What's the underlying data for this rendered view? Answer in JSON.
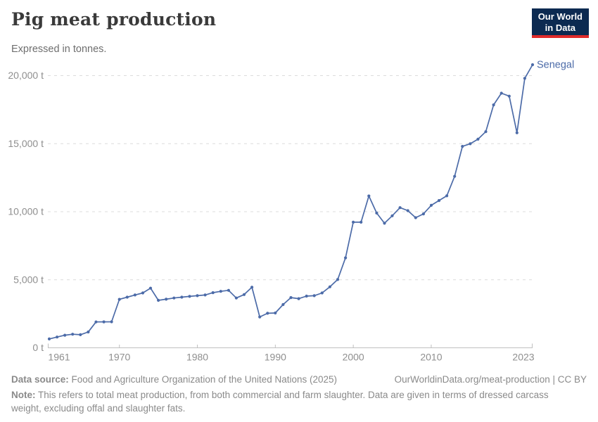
{
  "header": {
    "title": "Pig meat production",
    "subtitle": "Expressed in tonnes."
  },
  "logo": {
    "line1": "Our World",
    "line2": "in Data",
    "bg_color": "#0c2a51",
    "accent_color": "#e02b2b"
  },
  "chart_data": {
    "type": "line",
    "title": "Pig meat production",
    "unit": "tonnes",
    "grid": "horizontal-dashed",
    "legend_position": "end-of-line-label",
    "xlim": [
      1961,
      2023
    ],
    "ylim": [
      0,
      20000
    ],
    "x_ticks": [
      {
        "year": 1961,
        "label": "1961"
      },
      {
        "year": 1970,
        "label": "1970"
      },
      {
        "year": 1980,
        "label": "1980"
      },
      {
        "year": 1990,
        "label": "1990"
      },
      {
        "year": 2000,
        "label": "2000"
      },
      {
        "year": 2010,
        "label": "2010"
      },
      {
        "year": 2023,
        "label": "2023"
      }
    ],
    "y_ticks": [
      {
        "value": 0,
        "label": "0 t"
      },
      {
        "value": 5000,
        "label": "5,000 t"
      },
      {
        "value": 10000,
        "label": "10,000 t"
      },
      {
        "value": 15000,
        "label": "15,000 t"
      },
      {
        "value": 20000,
        "label": "20,000 t"
      }
    ],
    "x": [
      1961,
      1962,
      1963,
      1964,
      1965,
      1966,
      1967,
      1968,
      1969,
      1970,
      1971,
      1972,
      1973,
      1974,
      1975,
      1976,
      1977,
      1978,
      1979,
      1980,
      1981,
      1982,
      1983,
      1984,
      1985,
      1986,
      1987,
      1988,
      1989,
      1990,
      1991,
      1992,
      1993,
      1994,
      1995,
      1996,
      1997,
      1998,
      1999,
      2000,
      2001,
      2002,
      2003,
      2004,
      2005,
      2006,
      2007,
      2008,
      2009,
      2010,
      2011,
      2012,
      2013,
      2014,
      2015,
      2016,
      2017,
      2018,
      2019,
      2020,
      2021,
      2022,
      2023
    ],
    "series": [
      {
        "name": "Senegal",
        "color": "#4c6ba8",
        "values": [
          650,
          790,
          925,
          995,
          960,
          1165,
          1900,
          1905,
          1910,
          3560,
          3720,
          3880,
          4030,
          4380,
          3490,
          3570,
          3660,
          3720,
          3780,
          3830,
          3880,
          4050,
          4150,
          4220,
          3660,
          3910,
          4450,
          2270,
          2540,
          2560,
          3180,
          3690,
          3610,
          3800,
          3830,
          4030,
          4480,
          5020,
          6610,
          9230,
          9230,
          11160,
          9900,
          9150,
          9700,
          10300,
          10080,
          9560,
          9840,
          10470,
          10820,
          11170,
          12600,
          14800,
          14990,
          15330,
          15880,
          17850,
          18710,
          18490,
          15800,
          19800,
          20800
        ]
      }
    ],
    "end_label": "Senegal"
  },
  "footer": {
    "data_source_label": "Data source:",
    "data_source": "Food and Agriculture Organization of the United Nations (2025)",
    "attribution": "OurWorldinData.org/meat-production | CC BY",
    "note_label": "Note:",
    "note": "This refers to total meat production, from both commercial and farm slaughter. Data are given in terms of dressed carcass weight, excluding offal and slaughter fats."
  }
}
